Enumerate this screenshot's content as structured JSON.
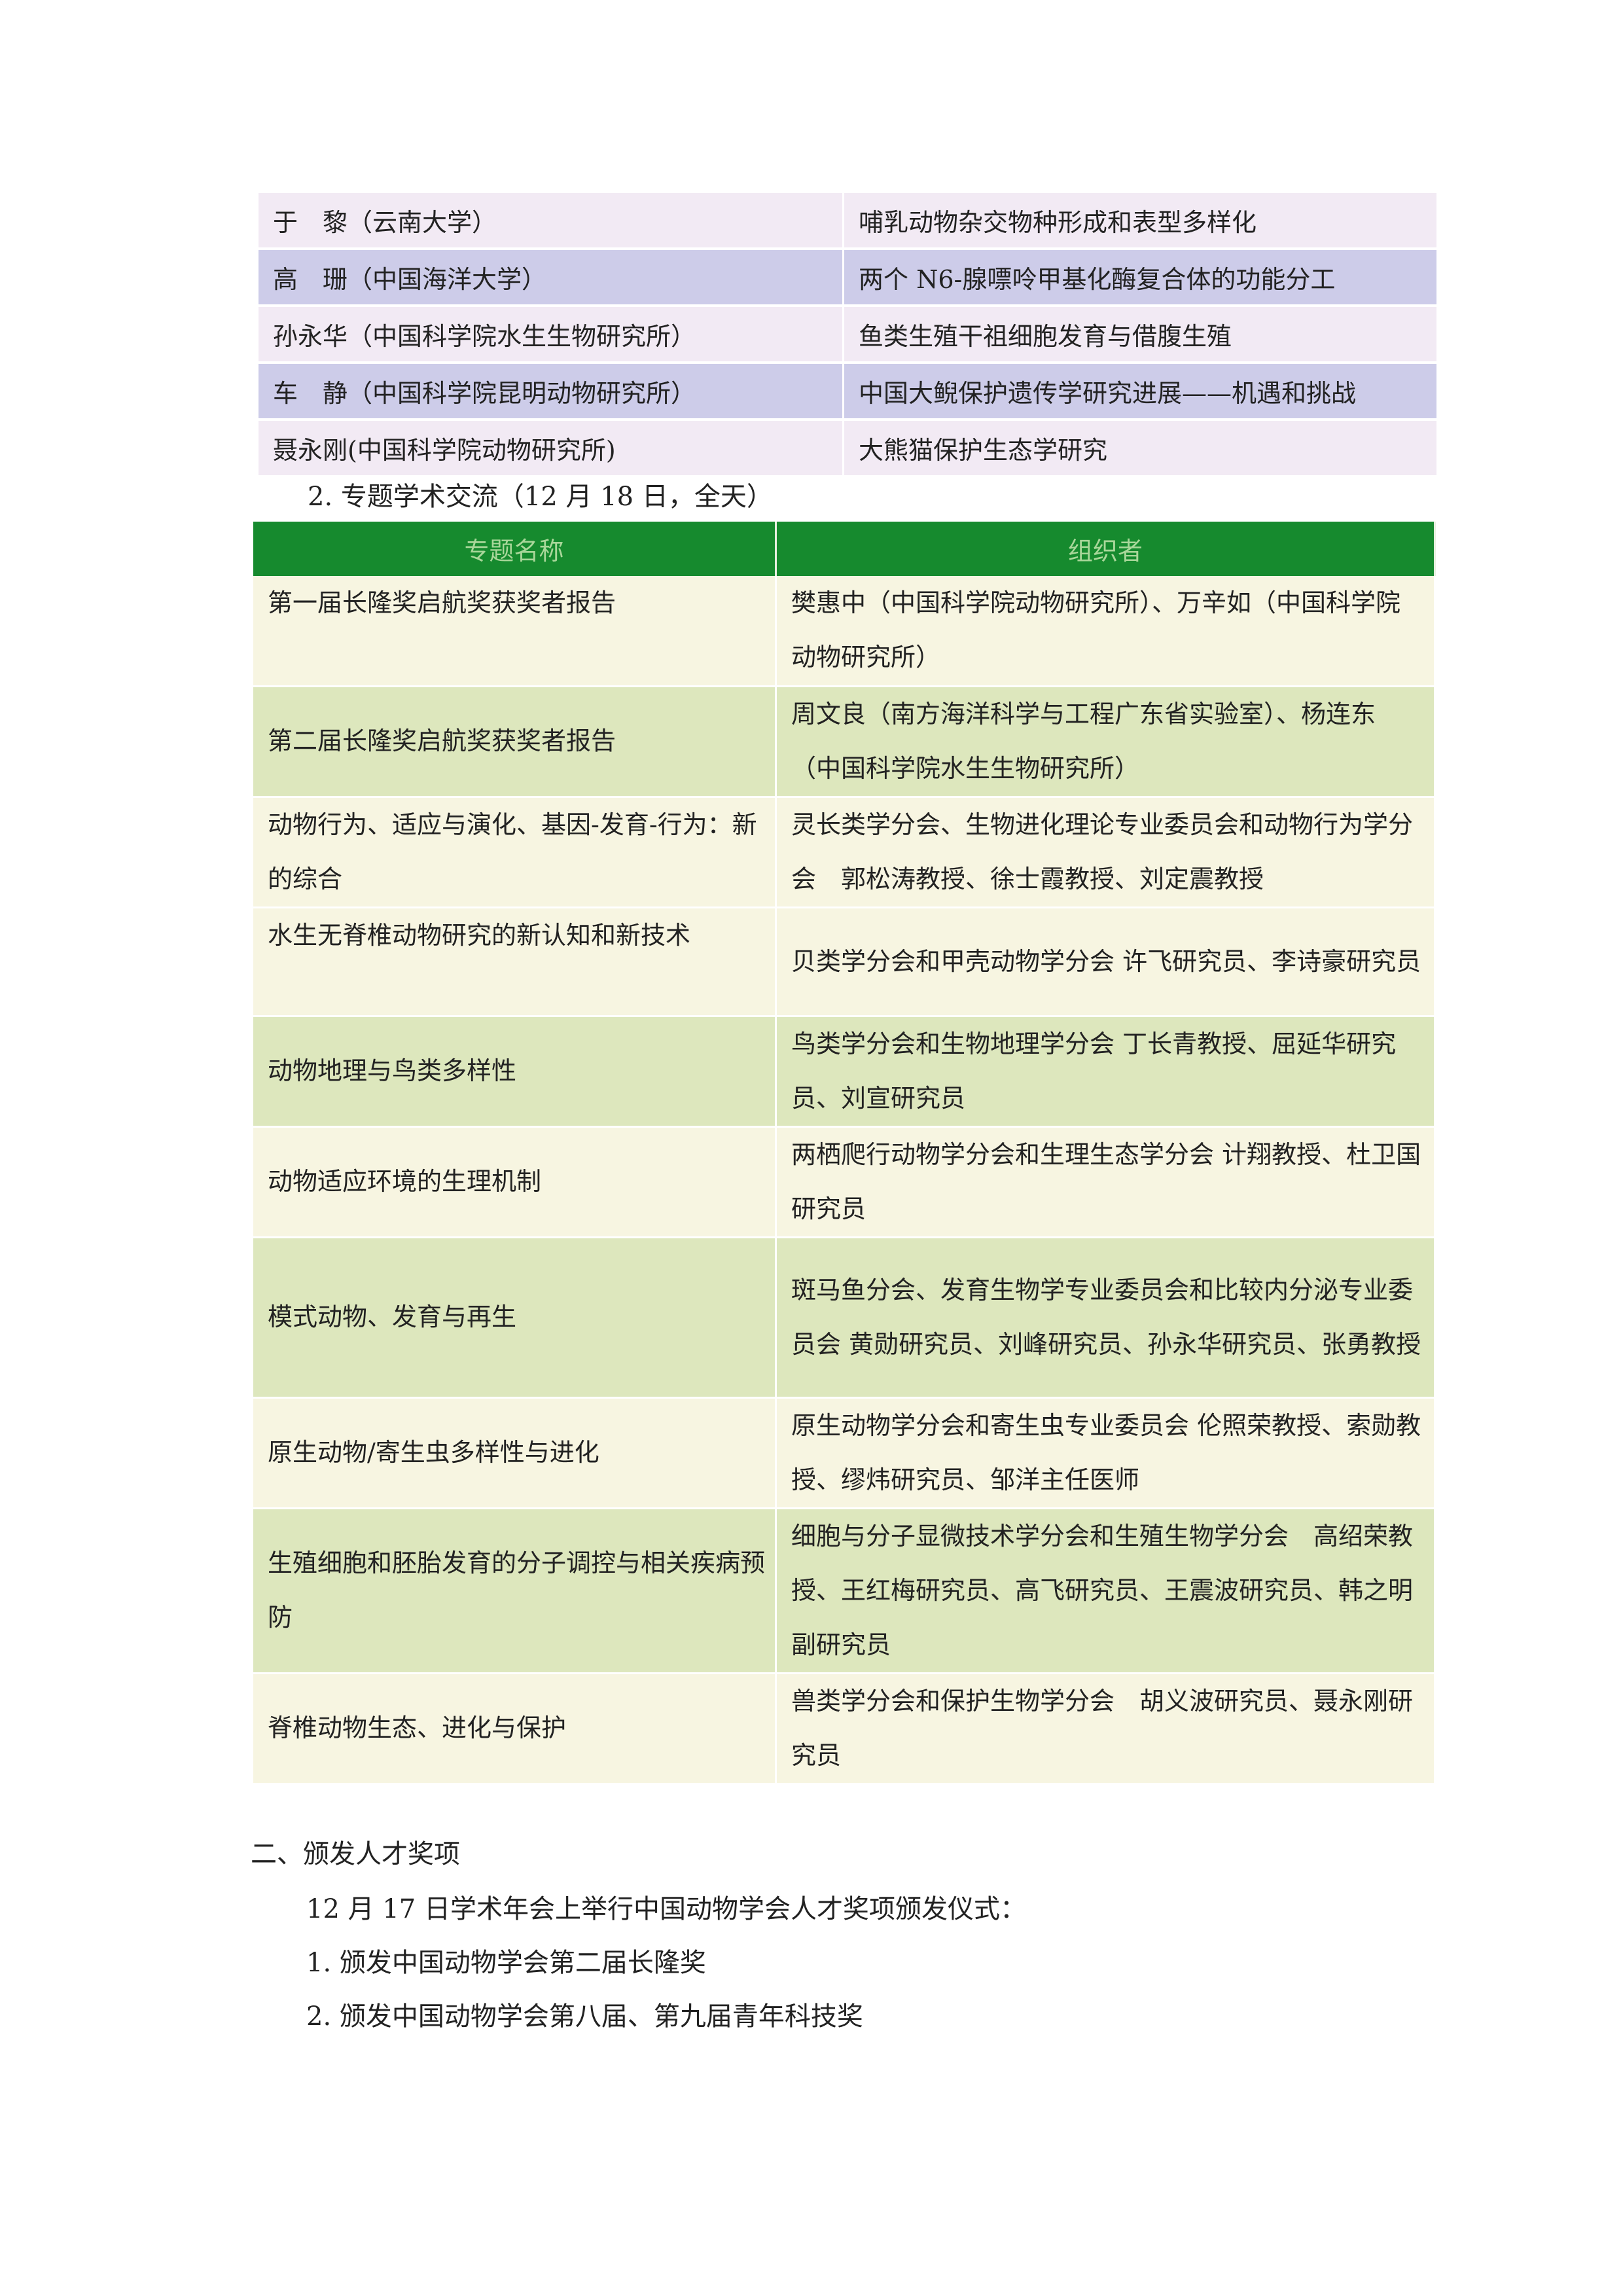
{
  "reports_table": {
    "rows": [
      {
        "speaker": "于　黎（云南大学）",
        "title": "哺乳动物杂交物种形成和表型多样化"
      },
      {
        "speaker": "高　珊（中国海洋大学）",
        "title": "两个 N6-腺嘌呤甲基化酶复合体的功能分工"
      },
      {
        "speaker": "孙永华（中国科学院水生生物研究所）",
        "title": "鱼类生殖干祖细胞发育与借腹生殖"
      },
      {
        "speaker": "车　静（中国科学院昆明动物研究所）",
        "title": "中国大鲵保护遗传学研究进展——机遇和挑战"
      },
      {
        "speaker": "聂永刚(中国科学院动物研究所)",
        "title": "大熊猫保护生态学研究"
      }
    ]
  },
  "section_2_title": "2. 专题学术交流（12 月 18 日，全天）",
  "topics_table": {
    "header": {
      "topic": "专题名称",
      "organizer": "组织者"
    },
    "rows": [
      {
        "topic": "第一届长隆奖启航奖获奖者报告",
        "organizer": "樊惠中（中国科学院动物研究所）、万辛如（中国科学院动物研究所）"
      },
      {
        "topic": "第二届长隆奖启航奖获奖者报告",
        "organizer": "周文良（南方海洋科学与工程广东省实验室）、杨连东（中国科学院水生生物研究所）"
      },
      {
        "topic": "动物行为、适应与演化、基因-发育-行为：新的综合",
        "organizer": "灵长类学分会、生物进化理论专业委员会和动物行为学分会　郭松涛教授、徐士霞教授、刘定震教授"
      },
      {
        "topic": "水生无脊椎动物研究的新认知和新技术",
        "organizer": "贝类学分会和甲壳动物学分会 许飞研究员、李诗豪研究员"
      },
      {
        "topic": "动物地理与鸟类多样性",
        "organizer": "鸟类学分会和生物地理学分会 丁长青教授、屈延华研究员、刘宣研究员"
      },
      {
        "topic": "动物适应环境的生理机制",
        "organizer": "两栖爬行动物学分会和生理生态学分会 计翔教授、杜卫国研究员"
      },
      {
        "topic": "模式动物、发育与再生",
        "organizer": "斑马鱼分会、发育生物学专业委员会和比较内分泌专业委员会 黄勋研究员、刘峰研究员、孙永华研究员、张勇教授"
      },
      {
        "topic": "原生动物/寄生虫多样性与进化",
        "organizer": "原生动物学分会和寄生虫专业委员会 伦照荣教授、索勋教授、缪炜研究员、邹洋主任医师"
      },
      {
        "topic": "生殖细胞和胚胎发育的分子调控与相关疾病预防",
        "organizer": "细胞与分子显微技术学分会和生殖生物学分会　高绍荣教授、王红梅研究员、高飞研究员、王震波研究员、韩之明副研究员"
      },
      {
        "topic": "脊椎动物生态、进化与保护",
        "organizer": "兽类学分会和保护生物学分会　胡义波研究员、聂永刚研究员"
      }
    ]
  },
  "awards": {
    "heading": "二、颁发人才奖项",
    "intro": "12 月 17 日学术年会上举行中国动物学会人才奖项颁发仪式：",
    "items": [
      "1.  颁发中国动物学会第二届长隆奖",
      "2.  颁发中国动物学会第八届、第九届青年科技奖"
    ]
  },
  "colors": {
    "header_green": "#168a2e",
    "row_cream": "#f7f5e1",
    "row_green": "#dde7bd",
    "row_lavender": "#f2eaf4",
    "row_purple": "#cdcce9"
  }
}
